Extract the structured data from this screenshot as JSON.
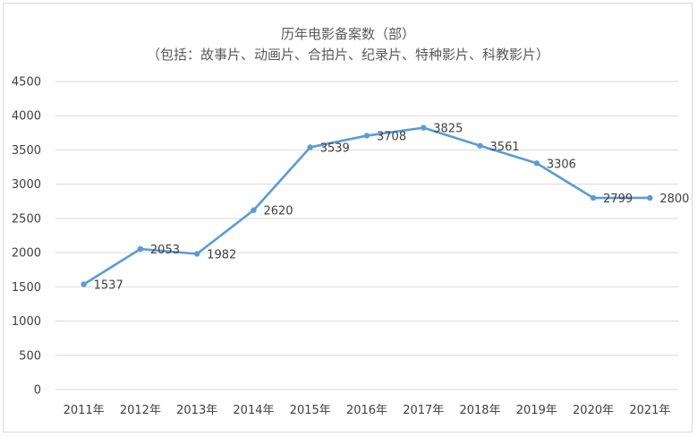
{
  "chart_data": {
    "type": "line",
    "title": "历年电影备案数（部）",
    "subtitle": "（包括：故事片、动画片、合拍片、纪录片、特种影片、科教影片）",
    "categories": [
      "2011年",
      "2012年",
      "2013年",
      "2014年",
      "2015年",
      "2016年",
      "2017年",
      "2018年",
      "2019年",
      "2020年",
      "2021年"
    ],
    "series": [
      {
        "values": [
          1537,
          2053,
          1982,
          2620,
          3539,
          3708,
          3825,
          3561,
          3306,
          2799,
          2800
        ]
      }
    ],
    "y_ticks": [
      "0",
      "500",
      "1000",
      "1500",
      "2000",
      "2500",
      "3000",
      "3500",
      "4000",
      "4500"
    ],
    "data_labels": [
      "1537",
      "2053",
      "1982",
      "2620",
      "3539",
      "3708",
      "3825",
      "3561",
      "3306",
      "2799",
      "2800"
    ],
    "ylim": [
      0,
      4500
    ],
    "grid": true,
    "legend": "none",
    "line_color": "#5b9bd5",
    "grid_color": "#d9d9d9"
  }
}
